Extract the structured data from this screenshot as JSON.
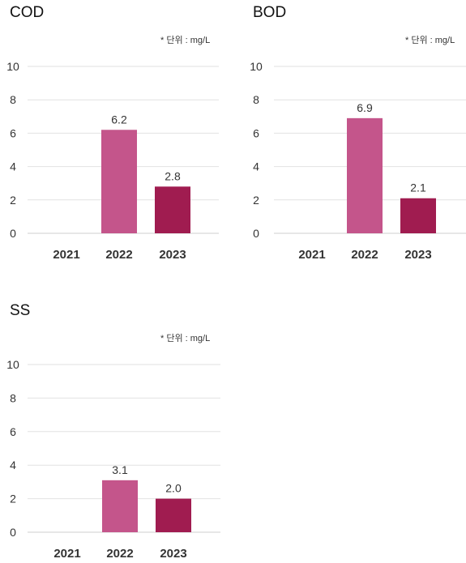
{
  "chart_data": [
    {
      "type": "bar",
      "title": "COD",
      "unit_note": "* 단위 : mg/L",
      "categories": [
        "2021",
        "2022",
        "2023"
      ],
      "values": [
        null,
        6.2,
        2.8
      ],
      "value_labels": [
        "",
        "6.2",
        "2.8"
      ],
      "bar_colors": [
        "#c4558b",
        "#c4558b",
        "#a01c50"
      ],
      "ylim": [
        0,
        10
      ],
      "yticks": [
        0,
        2,
        4,
        6,
        8,
        10
      ],
      "grid": true,
      "xlabel": "",
      "ylabel": ""
    },
    {
      "type": "bar",
      "title": "BOD",
      "unit_note": "* 단위 : mg/L",
      "categories": [
        "2021",
        "2022",
        "2023"
      ],
      "values": [
        null,
        6.9,
        2.1
      ],
      "value_labels": [
        "",
        "6.9",
        "2.1"
      ],
      "bar_colors": [
        "#c4558b",
        "#c4558b",
        "#a01c50"
      ],
      "ylim": [
        0,
        10
      ],
      "yticks": [
        0,
        2,
        4,
        6,
        8,
        10
      ],
      "grid": true,
      "xlabel": "",
      "ylabel": ""
    },
    {
      "type": "bar",
      "title": "SS",
      "unit_note": "* 단위 : mg/L",
      "categories": [
        "2021",
        "2022",
        "2023"
      ],
      "values": [
        null,
        3.1,
        2.0
      ],
      "value_labels": [
        "",
        "3.1",
        "2.0"
      ],
      "bar_colors": [
        "#c4558b",
        "#c4558b",
        "#a01c50"
      ],
      "ylim": [
        0,
        10
      ],
      "yticks": [
        0,
        2,
        4,
        6,
        8,
        10
      ],
      "grid": true,
      "xlabel": "",
      "ylabel": ""
    }
  ]
}
